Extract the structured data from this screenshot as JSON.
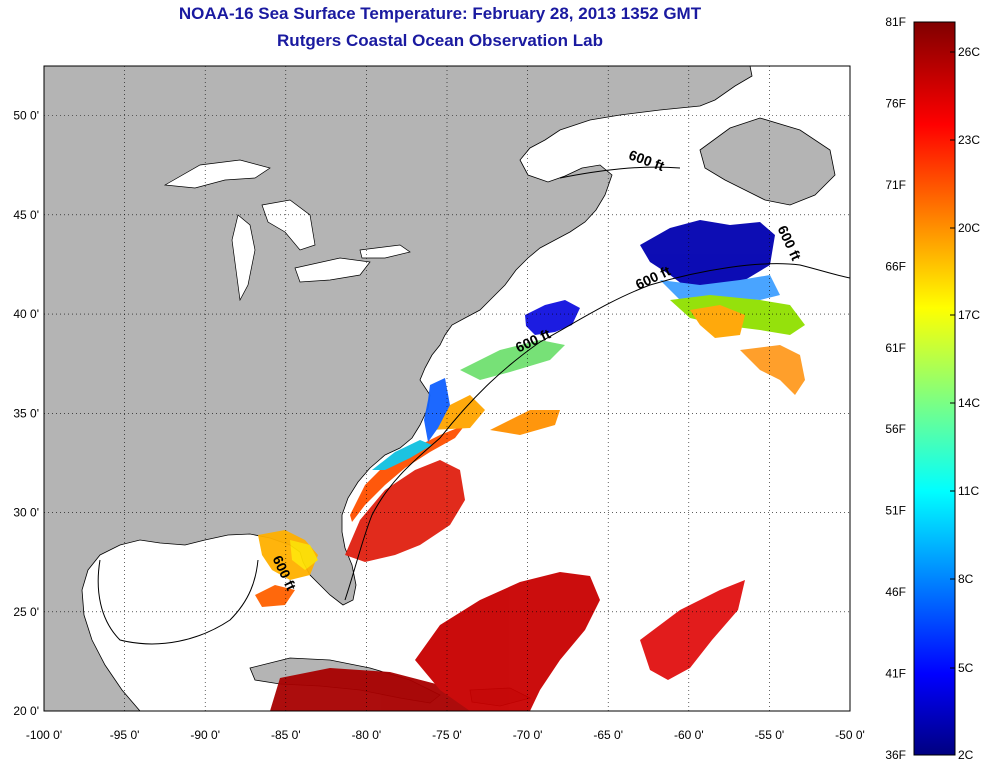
{
  "title": "NOAA-16 Sea Surface Temperature:  February 28, 2013 1352 GMT",
  "subtitle": "Rutgers Coastal Ocean Observation Lab",
  "map": {
    "lon_range": [
      -100,
      -50
    ],
    "lat_range": [
      20,
      52.5
    ],
    "lat_ticks": [
      "50 0'",
      "45 0'",
      "40 0'",
      "35 0'",
      "30 0'",
      "25 0'",
      "20 0'"
    ],
    "lon_ticks": [
      "-100 0'",
      "-95 0'",
      "-90 0'",
      "-85 0'",
      "-80 0'",
      "-75 0'",
      "-70 0'",
      "-65 0'",
      "-60 0'",
      "-55 0'",
      "-50 0'"
    ],
    "grid": "dotted",
    "land_color": "#b4b4b4",
    "isobath_labels": [
      "600 ft",
      "600 ft",
      "600 ft",
      "600 ft",
      "600 ft"
    ]
  },
  "colorbar": {
    "fahrenheit_labels": [
      "81F",
      "76F",
      "71F",
      "66F",
      "61F",
      "56F",
      "51F",
      "46F",
      "41F",
      "36F"
    ],
    "celsius_labels": [
      "26C",
      "23C",
      "20C",
      "17C",
      "14C",
      "11C",
      "8C",
      "5C",
      "2C"
    ],
    "range_c": [
      2,
      27.2
    ],
    "colormap": "jet"
  }
}
